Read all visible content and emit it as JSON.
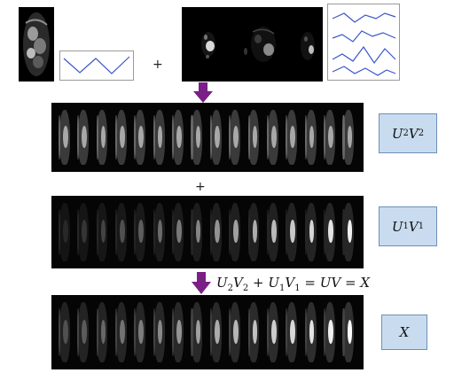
{
  "operators": {
    "plus_top": "+",
    "plus_middle": "+"
  },
  "labels": {
    "u2v2": {
      "u": "U",
      "u_sub": "2",
      "v": "V",
      "v_sub": "2"
    },
    "u1v1": {
      "u": "U",
      "u_sub": "1",
      "v": "V",
      "v_sub": "1"
    },
    "x": "X"
  },
  "equation": {
    "t1_u": "U",
    "t1_u_sub": "2",
    "t1_v": "V",
    "t1_v_sub": "2",
    "plus": " + ",
    "t2_u": "U",
    "t2_u_sub": "1",
    "t2_v": "V",
    "t2_v_sub": "1",
    "eq1": " = ",
    "t3": "UV",
    "eq2": " = ",
    "t4": "X"
  },
  "colors": {
    "arrow": "#7a1f86",
    "label_fill": "#c9dcef",
    "label_border": "#6d8fb8",
    "curve": "#3a55c9"
  },
  "strips": {
    "frame_count": 16
  }
}
